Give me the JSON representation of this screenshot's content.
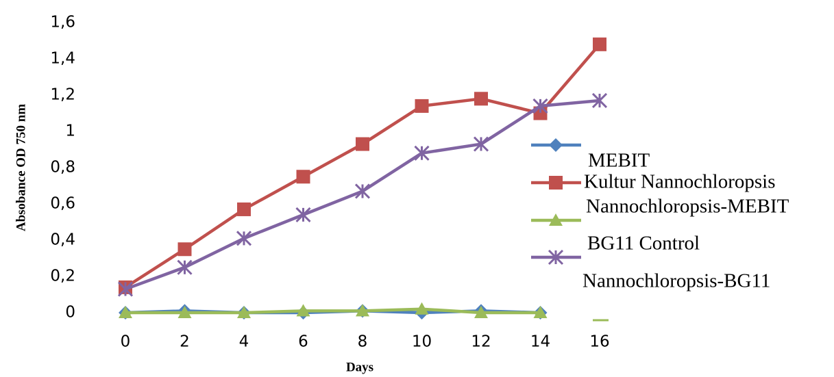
{
  "chart_data": {
    "type": "line",
    "y_label": "Absobance OD 750 nm",
    "x_label": "Days",
    "x": [
      0,
      2,
      4,
      6,
      8,
      10,
      12,
      14,
      16
    ],
    "xlim": [
      0,
      16
    ],
    "xticks": [
      0,
      2,
      4,
      6,
      8,
      10,
      12,
      14,
      16
    ],
    "ylim": [
      0,
      1.6
    ],
    "yticks": [
      0,
      {
        "value": 0.2,
        "label": "0,2"
      },
      {
        "value": 0.4,
        "label": "0,4"
      },
      {
        "value": 0.6,
        "label": "0,6"
      },
      {
        "value": 0.8,
        "label": "0,8"
      },
      1,
      {
        "value": 1.2,
        "label": "1,2"
      },
      {
        "value": 1.4,
        "label": "1,4"
      },
      {
        "value": 1.6,
        "label": "1,6"
      }
    ],
    "series": [
      {
        "name": "MEBIT",
        "color": "#4f81bd",
        "marker": "diamond",
        "values": [
          0,
          0.01,
          0,
          0,
          0.01,
          0,
          0.01,
          0,
          null
        ]
      },
      {
        "name": "Kultur Nannochloropsis",
        "color": "#c0504d",
        "marker": "square",
        "values": [
          0.14,
          0.35,
          0.57,
          0.75,
          0.93,
          1.14,
          1.18,
          1.1,
          1.48
        ]
      },
      {
        "name": "Nannochloropsis-MEBIT",
        "color": "#9bbb59",
        "marker": "triangle",
        "values": [
          0,
          0,
          0,
          0.01,
          0.01,
          0.02,
          0,
          0,
          null
        ]
      },
      {
        "name": "BG11 Control",
        "color": "#8064a2",
        "marker": "star",
        "values": [
          0.13,
          0.25,
          0.41,
          0.54,
          0.67,
          0.88,
          0.93,
          1.14,
          1.17
        ]
      },
      {
        "name": "Nannochloropsis-BG11",
        "color": "#9bbb59",
        "marker": "none",
        "values": [
          null,
          null,
          null,
          null,
          null,
          null,
          null,
          null,
          null
        ]
      }
    ]
  }
}
